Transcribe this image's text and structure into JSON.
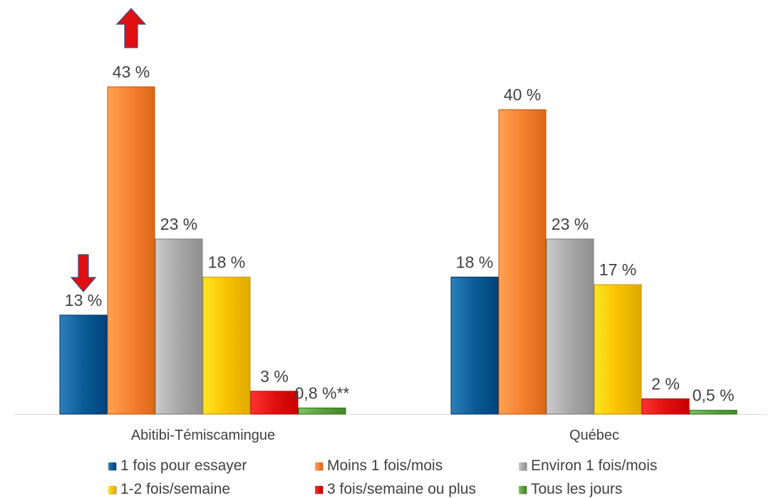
{
  "chart_data": {
    "type": "bar",
    "categories": [
      "Abitibi-Témiscamingue",
      "Québec"
    ],
    "series": [
      {
        "name": "1 fois pour essayer",
        "values": [
          13,
          18
        ],
        "labels": [
          "13 %",
          "18 %"
        ],
        "color": "#0a5c96"
      },
      {
        "name": "Moins 1 fois/mois",
        "values": [
          43,
          40
        ],
        "labels": [
          "43 %",
          "40 %"
        ],
        "color": "#f48030"
      },
      {
        "name": "Environ 1 fois/mois",
        "values": [
          23,
          23
        ],
        "labels": [
          "23 %",
          "23 %"
        ],
        "color": "#a8a8a8"
      },
      {
        "name": "1-2 fois/semaine",
        "values": [
          18,
          17
        ],
        "labels": [
          "18 %",
          "17 %"
        ],
        "color": "#f8c200"
      },
      {
        "name": "3 fois/semaine ou plus",
        "values": [
          3,
          2
        ],
        "labels": [
          "3 %",
          "2 %"
        ],
        "color": "#e01010"
      },
      {
        "name": "Tous les jours",
        "values": [
          0.8,
          0.5
        ],
        "labels": [
          "0,8 %**",
          "0,5 %"
        ],
        "color": "#5aa040"
      }
    ],
    "ylim": [
      0,
      43
    ],
    "grid": false,
    "legend_position": "bottom",
    "annotations": [
      {
        "type": "arrow-down",
        "category": "Abitibi-Témiscamingue",
        "series": "1 fois pour essayer",
        "color": "#e01010"
      },
      {
        "type": "arrow-up",
        "category": "Abitibi-Témiscamingue",
        "series": "Moins 1 fois/mois",
        "color": "#e01010"
      }
    ]
  }
}
